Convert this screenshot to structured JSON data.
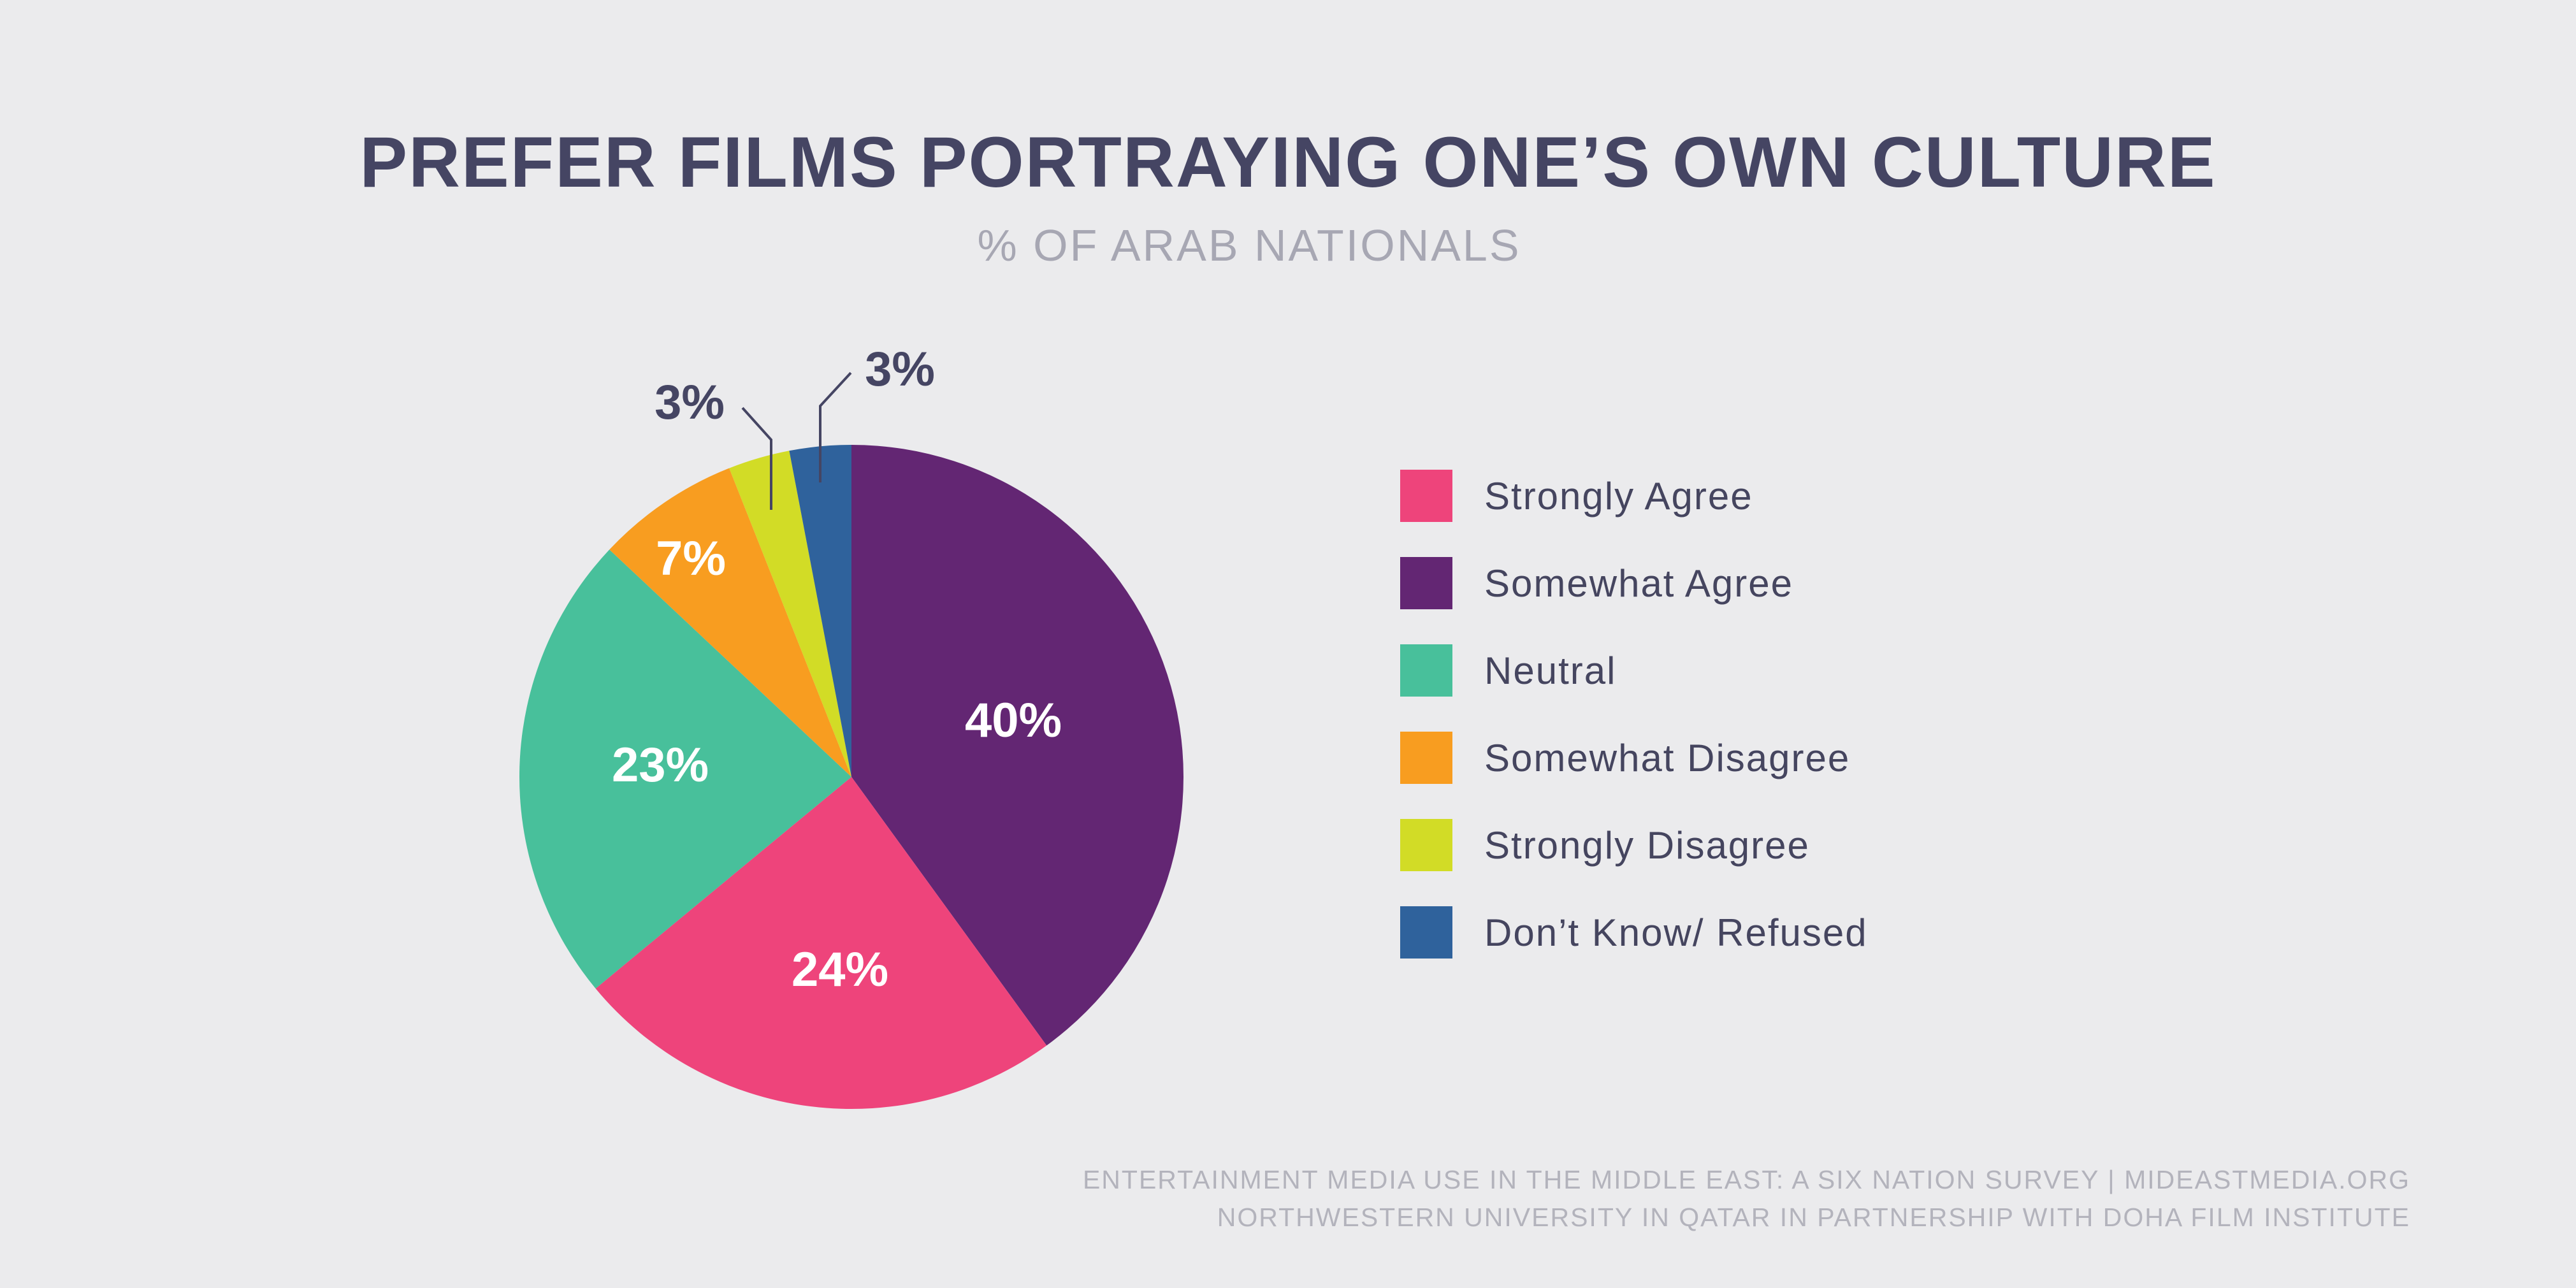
{
  "chart_data": {
    "type": "pie",
    "title": "PREFER FILMS PORTRAYING ONE’S OWN CULTURE",
    "subtitle": "% OF ARAB NATIONALS",
    "slices": [
      {
        "label": "Somewhat Agree",
        "value": 40,
        "display": "40%",
        "color": "#632673"
      },
      {
        "label": "Strongly Agree",
        "value": 24,
        "display": "24%",
        "color": "#ee447b"
      },
      {
        "label": "Neutral",
        "value": 23,
        "display": "23%",
        "color": "#48c09b"
      },
      {
        "label": "Somewhat Disagree",
        "value": 7,
        "display": "7%",
        "color": "#f89d20"
      },
      {
        "label": "Strongly Disagree",
        "value": 3,
        "display": "3%",
        "color": "#d2dc26"
      },
      {
        "label": "Don’t Know/ Refused",
        "value": 3,
        "display": "3%",
        "color": "#2f629c"
      }
    ],
    "legend_position": "right"
  },
  "legend": {
    "items": [
      {
        "label": "Strongly Agree",
        "color": "#ee447b"
      },
      {
        "label": "Somewhat Agree",
        "color": "#632673"
      },
      {
        "label": "Neutral",
        "color": "#48c09b"
      },
      {
        "label": "Somewhat Disagree",
        "color": "#f89d20"
      },
      {
        "label": "Strongly Disagree",
        "color": "#d2dc26"
      },
      {
        "label": "Don’t Know/ Refused",
        "color": "#2f629c"
      }
    ]
  },
  "footer": {
    "line1": "ENTERTAINMENT MEDIA USE IN THE MIDDLE EAST: A SIX NATION SURVEY | MIDEASTMEDIA.ORG",
    "line2": "NORTHWESTERN UNIVERSITY IN QATAR IN PARTNERSHIP WITH DOHA FILM INSTITUTE"
  },
  "colors": {
    "background": "#ebebed",
    "title": "#454563",
    "subtitle": "#a7a7b3",
    "footer": "#b3b3bc"
  }
}
